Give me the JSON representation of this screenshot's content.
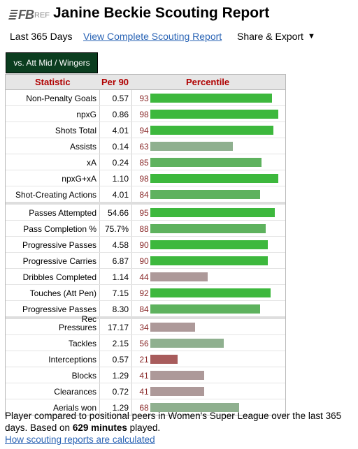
{
  "logo": {
    "brand": "FB",
    "sub": "REF"
  },
  "title": "Janine Beckie Scouting Report",
  "subnav": {
    "period": "Last 365 Days",
    "link": "View Complete Scouting Report",
    "share": "Share & Export",
    "caret": "▼"
  },
  "tab": {
    "label": "vs. Att Mid / Wingers"
  },
  "table": {
    "headers": [
      "Statistic",
      "Per 90",
      "Percentile"
    ],
    "rows": [
      {
        "stat": "Non-Penalty Goals",
        "per90": "0.57",
        "pct": 93,
        "group_end": false
      },
      {
        "stat": "npxG",
        "per90": "0.86",
        "pct": 98,
        "group_end": false
      },
      {
        "stat": "Shots Total",
        "per90": "4.01",
        "pct": 94,
        "group_end": false
      },
      {
        "stat": "Assists",
        "per90": "0.14",
        "pct": 63,
        "group_end": false
      },
      {
        "stat": "xA",
        "per90": "0.24",
        "pct": 85,
        "group_end": false
      },
      {
        "stat": "npxG+xA",
        "per90": "1.10",
        "pct": 98,
        "group_end": false
      },
      {
        "stat": "Shot-Creating Actions",
        "per90": "4.01",
        "pct": 84,
        "group_end": true
      },
      {
        "stat": "Passes Attempted",
        "per90": "54.66",
        "pct": 95,
        "group_end": false
      },
      {
        "stat": "Pass Completion %",
        "per90": "75.7%",
        "pct": 88,
        "group_end": false
      },
      {
        "stat": "Progressive Passes",
        "per90": "4.58",
        "pct": 90,
        "group_end": false
      },
      {
        "stat": "Progressive Carries",
        "per90": "6.87",
        "pct": 90,
        "group_end": false
      },
      {
        "stat": "Dribbles Completed",
        "per90": "1.14",
        "pct": 44,
        "group_end": false
      },
      {
        "stat": "Touches (Att Pen)",
        "per90": "7.15",
        "pct": 92,
        "group_end": false
      },
      {
        "stat": "Progressive Passes Rec",
        "per90": "8.30",
        "pct": 84,
        "group_end": true
      },
      {
        "stat": "Pressures",
        "per90": "17.17",
        "pct": 34,
        "group_end": false
      },
      {
        "stat": "Tackles",
        "per90": "2.15",
        "pct": 56,
        "group_end": false
      },
      {
        "stat": "Interceptions",
        "per90": "0.57",
        "pct": 21,
        "group_end": false
      },
      {
        "stat": "Blocks",
        "per90": "1.29",
        "pct": 41,
        "group_end": false
      },
      {
        "stat": "Clearances",
        "per90": "0.72",
        "pct": 41,
        "group_end": false
      },
      {
        "stat": "Aerials won",
        "per90": "1.29",
        "pct": 68,
        "group_end": false
      }
    ]
  },
  "colors": {
    "tab_bg": "#0b3d1f",
    "header_text": "#b00000",
    "link": "#2a64b5",
    "bar_high": "#3db83d",
    "bar_upper_mid": "#5eb25e",
    "bar_mid": "#8fb08f",
    "bar_low_mid": "#ad9999",
    "bar_low": "#a85c5c"
  },
  "footer": {
    "text_before": "Player compared to positional peers in Women's Super League over the last 365 days. Based on ",
    "minutes": "629 minutes",
    "text_after": " played.",
    "how_link": "How scouting reports are calculated"
  }
}
